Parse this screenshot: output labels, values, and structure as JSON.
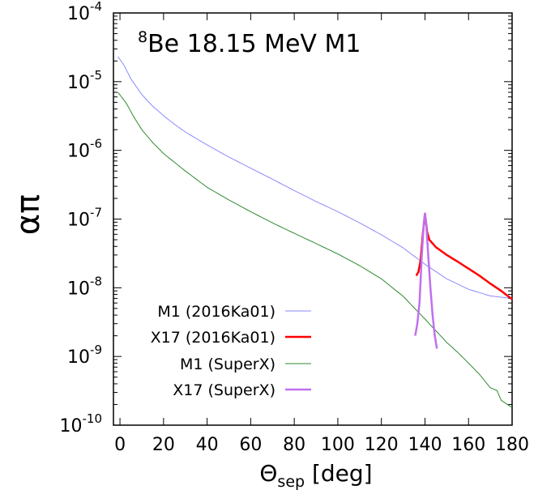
{
  "chart_data": {
    "type": "line",
    "title_sup": "8",
    "title_main": "Be 18.15 MeV M1",
    "ylabel": "απ",
    "xlabel_main": "Θ",
    "xlabel_sub": "sep",
    "xlabel_unit": " [deg]",
    "xlim": [
      -3,
      180
    ],
    "ylim_log10": [
      -10,
      -4
    ],
    "x_ticks": [
      0,
      20,
      40,
      60,
      80,
      100,
      120,
      140,
      160,
      180
    ],
    "y_ticks": [
      {
        "base": "10",
        "exp": "-4",
        "value": -4
      },
      {
        "base": "10",
        "exp": "-5",
        "value": -5
      },
      {
        "base": "10",
        "exp": "-6",
        "value": -6
      },
      {
        "base": "10",
        "exp": "-7",
        "value": -7
      },
      {
        "base": "10",
        "exp": "-8",
        "value": -8
      },
      {
        "base": "10",
        "exp": "-9",
        "value": -9
      },
      {
        "base": "10",
        "exp": "-10",
        "value": -10
      }
    ],
    "series": [
      {
        "name": "M1 (2016Ka01)",
        "color": "#8a8aff",
        "points": [
          [
            -1,
            2.3e-05
          ],
          [
            0,
            2.1e-05
          ],
          [
            2,
            1.7e-05
          ],
          [
            5,
            1.1e-05
          ],
          [
            10,
            6.5e-06
          ],
          [
            15,
            4.4e-06
          ],
          [
            20,
            3.2e-06
          ],
          [
            25,
            2.4e-06
          ],
          [
            30,
            1.85e-06
          ],
          [
            40,
            1.2e-06
          ],
          [
            50,
            8e-07
          ],
          [
            60,
            5.5e-07
          ],
          [
            70,
            3.8e-07
          ],
          [
            80,
            2.6e-07
          ],
          [
            90,
            1.8e-07
          ],
          [
            100,
            1.28e-07
          ],
          [
            110,
            8.8e-08
          ],
          [
            120,
            5.9e-08
          ],
          [
            130,
            3.8e-08
          ],
          [
            140,
            2.2e-08
          ],
          [
            150,
            1.35e-08
          ],
          [
            160,
            9.5e-09
          ],
          [
            170,
            7.6e-09
          ],
          [
            180,
            7e-09
          ]
        ]
      },
      {
        "name": "X17 (2016Ka01)",
        "color": "#ff0000",
        "points": [
          [
            136,
            1.5e-08
          ],
          [
            137,
            1.7e-08
          ],
          [
            138,
            2.5e-08
          ],
          [
            139,
            6e-08
          ],
          [
            140,
            1.2e-07
          ],
          [
            141,
            6.5e-08
          ],
          [
            142,
            5e-08
          ],
          [
            145,
            3.9e-08
          ],
          [
            150,
            3e-08
          ],
          [
            155,
            2.4e-08
          ],
          [
            160,
            1.9e-08
          ],
          [
            165,
            1.5e-08
          ],
          [
            170,
            1.15e-08
          ],
          [
            175,
            9e-09
          ],
          [
            180,
            6.8e-09
          ]
        ]
      },
      {
        "name": "M1 (SuperX)",
        "color": "#2f8a2f",
        "points": [
          [
            -1,
            7e-06
          ],
          [
            0,
            6.4e-06
          ],
          [
            3,
            4.8e-06
          ],
          [
            6,
            3.2e-06
          ],
          [
            10,
            2e-06
          ],
          [
            15,
            1.3e-06
          ],
          [
            20,
            9e-07
          ],
          [
            30,
            5e-07
          ],
          [
            40,
            2.9e-07
          ],
          [
            50,
            1.9e-07
          ],
          [
            60,
            1.28e-07
          ],
          [
            70,
            8.8e-08
          ],
          [
            80,
            6.2e-08
          ],
          [
            90,
            4.4e-08
          ],
          [
            100,
            3.1e-08
          ],
          [
            110,
            2.1e-08
          ],
          [
            120,
            1.35e-08
          ],
          [
            130,
            7.5e-09
          ],
          [
            140,
            3.5e-09
          ],
          [
            150,
            1.6e-09
          ],
          [
            155,
            1.15e-09
          ],
          [
            160,
            8e-10
          ],
          [
            165,
            5.5e-10
          ],
          [
            170,
            3.5e-10
          ],
          [
            173,
            3.2e-10
          ],
          [
            175,
            2.3e-10
          ],
          [
            180,
            1.8e-10
          ]
        ]
      },
      {
        "name": "X17 (SuperX)",
        "color": "#c070f0",
        "points": [
          [
            135.5,
            2e-09
          ],
          [
            136.5,
            3e-09
          ],
          [
            137.5,
            6e-09
          ],
          [
            138.5,
            2.8e-08
          ],
          [
            139.5,
            9e-08
          ],
          [
            140,
            1.2e-07
          ],
          [
            140.5,
            9e-08
          ],
          [
            141.5,
            3e-08
          ],
          [
            142.5,
            1e-08
          ],
          [
            143.5,
            4e-09
          ],
          [
            144.5,
            2e-09
          ],
          [
            145.5,
            1.3e-09
          ]
        ]
      }
    ]
  }
}
